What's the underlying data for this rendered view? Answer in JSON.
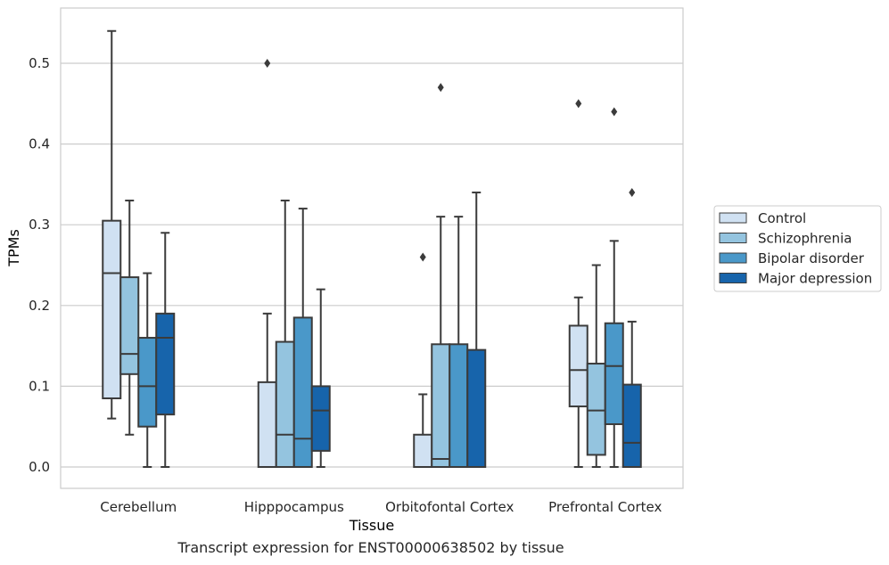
{
  "chart_data": {
    "type": "boxplot",
    "xlabel": "Tissue",
    "ylabel": "TPMs",
    "ylim": [
      -0.026,
      0.56
    ],
    "yticks": [
      0.0,
      0.1,
      0.2,
      0.3,
      0.4,
      0.5
    ],
    "ytick_labels": [
      "0.0",
      "0.1",
      "0.2",
      "0.3",
      "0.4",
      "0.5"
    ],
    "grid": "horizontal",
    "legend_position": "right",
    "categories": [
      "Cerebellum",
      "Hipppocampus",
      "Orbitofontal Cortex",
      "Prefrontal Cortex"
    ],
    "series": [
      {
        "name": "Control",
        "color": "#d0e1f2",
        "boxes": [
          {
            "whislo": 0.06,
            "q1": 0.085,
            "med": 0.24,
            "q3": 0.305,
            "whishi": 0.54,
            "fliers": []
          },
          {
            "whislo": 0.0,
            "q1": 0.0,
            "med": 0.0,
            "q3": 0.105,
            "whishi": 0.19,
            "fliers": [
              0.5
            ]
          },
          {
            "whislo": 0.0,
            "q1": 0.0,
            "med": 0.0,
            "q3": 0.04,
            "whishi": 0.09,
            "fliers": [
              0.26
            ]
          },
          {
            "whislo": 0.0,
            "q1": 0.075,
            "med": 0.12,
            "q3": 0.175,
            "whishi": 0.21,
            "fliers": [
              0.45
            ]
          }
        ]
      },
      {
        "name": "Schizophrenia",
        "color": "#94c4df",
        "boxes": [
          {
            "whislo": 0.04,
            "q1": 0.115,
            "med": 0.14,
            "q3": 0.235,
            "whishi": 0.33,
            "fliers": []
          },
          {
            "whislo": 0.0,
            "q1": 0.0,
            "med": 0.04,
            "q3": 0.155,
            "whishi": 0.33,
            "fliers": []
          },
          {
            "whislo": 0.0,
            "q1": 0.0,
            "med": 0.01,
            "q3": 0.152,
            "whishi": 0.31,
            "fliers": [
              0.47
            ]
          },
          {
            "whislo": 0.0,
            "q1": 0.015,
            "med": 0.07,
            "q3": 0.128,
            "whishi": 0.25,
            "fliers": []
          }
        ]
      },
      {
        "name": "Bipolar disorder",
        "color": "#4a98c9",
        "boxes": [
          {
            "whislo": 0.0,
            "q1": 0.05,
            "med": 0.1,
            "q3": 0.16,
            "whishi": 0.24,
            "fliers": []
          },
          {
            "whislo": 0.0,
            "q1": 0.0,
            "med": 0.035,
            "q3": 0.185,
            "whishi": 0.32,
            "fliers": []
          },
          {
            "whislo": 0.0,
            "q1": 0.0,
            "med": 0.0,
            "q3": 0.152,
            "whishi": 0.31,
            "fliers": []
          },
          {
            "whislo": 0.0,
            "q1": 0.053,
            "med": 0.125,
            "q3": 0.178,
            "whishi": 0.28,
            "fliers": [
              0.44
            ]
          }
        ]
      },
      {
        "name": "Major depression",
        "color": "#1764ab",
        "boxes": [
          {
            "whislo": 0.0,
            "q1": 0.065,
            "med": 0.16,
            "q3": 0.19,
            "whishi": 0.29,
            "fliers": []
          },
          {
            "whislo": 0.0,
            "q1": 0.02,
            "med": 0.07,
            "q3": 0.1,
            "whishi": 0.22,
            "fliers": []
          },
          {
            "whislo": 0.0,
            "q1": 0.0,
            "med": 0.0,
            "q3": 0.145,
            "whishi": 0.34,
            "fliers": []
          },
          {
            "whislo": 0.0,
            "q1": 0.0,
            "med": 0.03,
            "q3": 0.102,
            "whishi": 0.18,
            "fliers": [
              0.34
            ]
          }
        ]
      }
    ]
  },
  "caption": "Transcript expression for ENST00000638502 by tissue",
  "colors": {
    "grid": "#cccccc",
    "frame": "#cccccc",
    "line": "#3b3b3b",
    "text": "#262626"
  }
}
